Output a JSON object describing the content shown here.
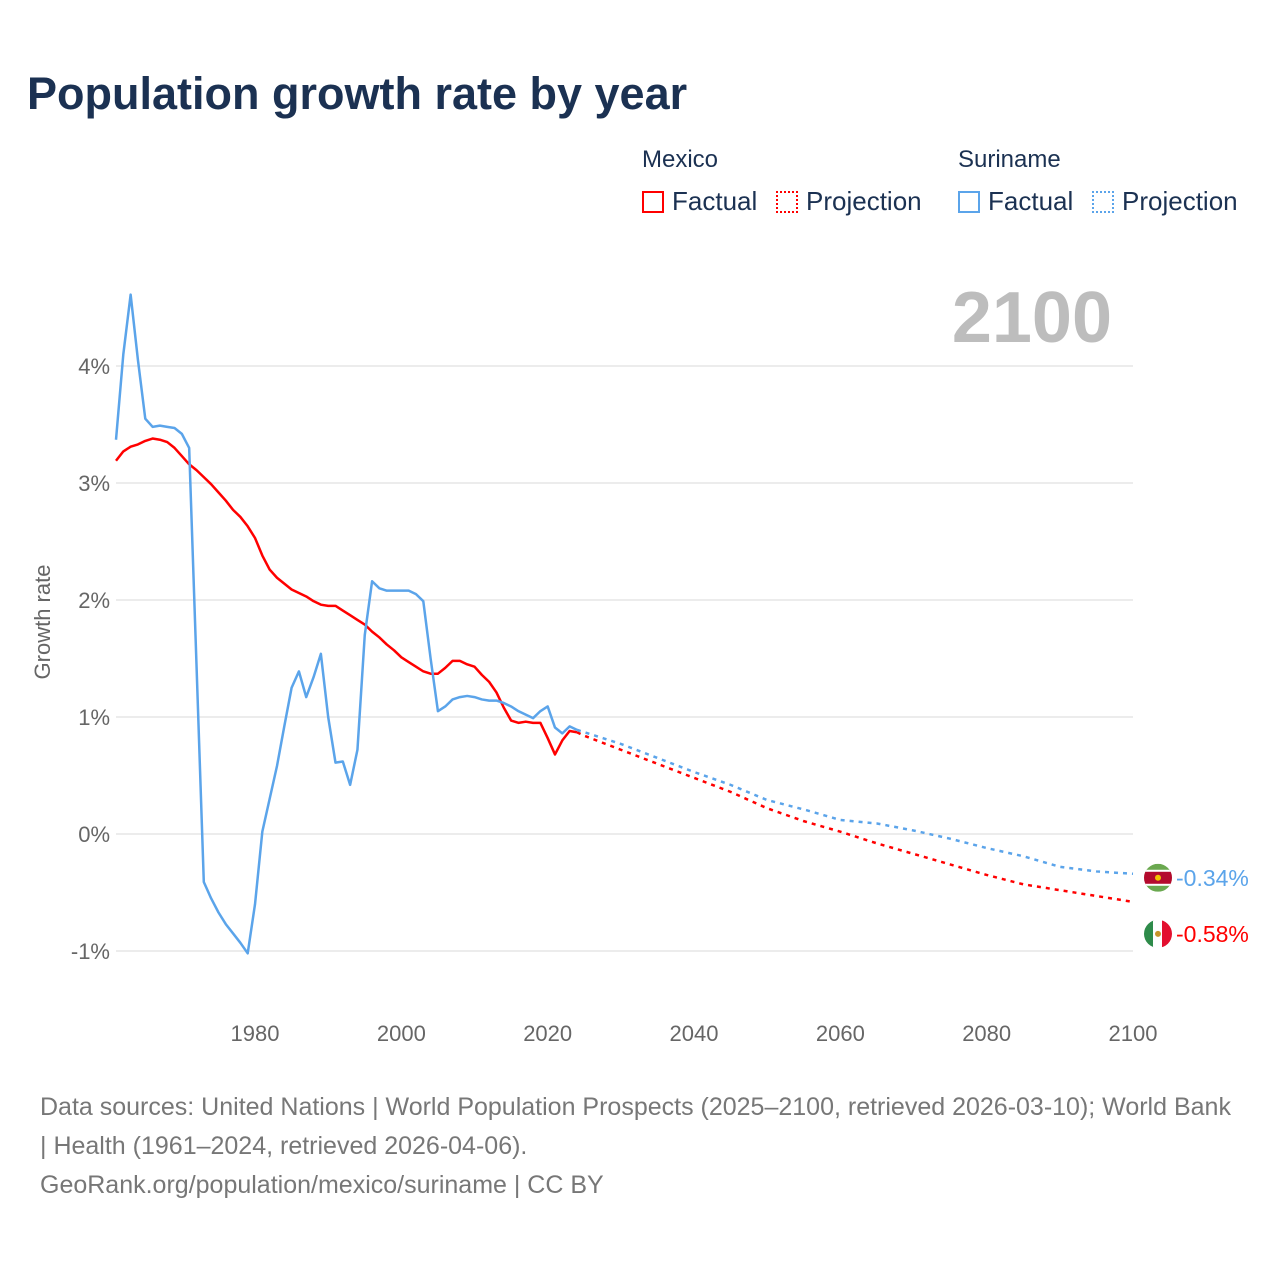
{
  "title": "Population growth rate by year",
  "legend": {
    "groups": [
      {
        "country": "Mexico",
        "color": "#ff0000",
        "factual": "Factual",
        "projection": "Projection"
      },
      {
        "country": "Suriname",
        "color": "#5ba4ea",
        "factual": "Factual",
        "projection": "Projection"
      }
    ]
  },
  "year_label": "2100",
  "footer": {
    "line1": "Data sources: United Nations | World Population Prospects (2025–2100, retrieved 2026-03-10); World Bank | Health (1961–2024, retrieved 2026-04-06).",
    "line2": "GeoRank.org/population/mexico/suriname | CC BY"
  },
  "chart_data": {
    "type": "line",
    "title": "Population growth rate by year",
    "xlabel": "",
    "ylabel": "Growth rate",
    "xlim": [
      1961,
      2100
    ],
    "ylim": [
      -1.5,
      4.8
    ],
    "grid": true,
    "x_ticks": [
      1980,
      2000,
      2020,
      2040,
      2060,
      2080,
      2100
    ],
    "x_tick_labels": [
      "1980",
      "2000",
      "2020",
      "2040",
      "2060",
      "2080",
      "2100"
    ],
    "y_ticks": [
      -1,
      0,
      1,
      2,
      3,
      4
    ],
    "y_tick_labels": [
      "-1%",
      "0%",
      "1%",
      "2%",
      "3%",
      "4%"
    ],
    "series": [
      {
        "name": "Mexico",
        "color": "#ff0000",
        "end_label": "-0.58%",
        "factual": {
          "start_year": 1961,
          "values": [
            3.19,
            3.27,
            3.31,
            3.33,
            3.36,
            3.38,
            3.37,
            3.35,
            3.3,
            3.23,
            3.16,
            3.11,
            3.05,
            2.99,
            2.92,
            2.85,
            2.77,
            2.71,
            2.63,
            2.53,
            2.38,
            2.26,
            2.19,
            2.14,
            2.09,
            2.06,
            2.03,
            1.99,
            1.96,
            1.95,
            1.95,
            1.91,
            1.87,
            1.83,
            1.79,
            1.73,
            1.68,
            1.62,
            1.57,
            1.51,
            1.47,
            1.43,
            1.39,
            1.37,
            1.37,
            1.42,
            1.48,
            1.48,
            1.45,
            1.43,
            1.36,
            1.3,
            1.21,
            1.08,
            0.97,
            0.95,
            0.96,
            0.95,
            0.95,
            0.82,
            0.68,
            0.8,
            0.88,
            0.87
          ]
        },
        "projection": {
          "years": [
            2024,
            2025,
            2030,
            2035,
            2040,
            2045,
            2050,
            2055,
            2060,
            2065,
            2070,
            2075,
            2080,
            2085,
            2090,
            2095,
            2100
          ],
          "values": [
            0.87,
            0.84,
            0.72,
            0.6,
            0.48,
            0.36,
            0.22,
            0.11,
            0.02,
            -0.08,
            -0.17,
            -0.26,
            -0.35,
            -0.43,
            -0.48,
            -0.53,
            -0.58
          ]
        }
      },
      {
        "name": "Suriname",
        "color": "#5ba4ea",
        "end_label": "-0.34%",
        "factual": {
          "start_year": 1961,
          "values": [
            3.37,
            4.1,
            4.61,
            4.05,
            3.55,
            3.48,
            3.49,
            3.48,
            3.47,
            3.42,
            3.3,
            1.45,
            -0.41,
            -0.55,
            -0.67,
            -0.77,
            -0.85,
            -0.93,
            -1.02,
            -0.6,
            0.02,
            0.3,
            0.58,
            0.92,
            1.25,
            1.39,
            1.17,
            1.34,
            1.54,
            1.0,
            0.61,
            0.62,
            0.42,
            0.72,
            1.7,
            2.16,
            2.1,
            2.08,
            2.08,
            2.08,
            2.08,
            2.05,
            1.99,
            1.5,
            1.05,
            1.09,
            1.15,
            1.17,
            1.18,
            1.17,
            1.15,
            1.14,
            1.14,
            1.12,
            1.09,
            1.05,
            1.02,
            0.99,
            1.05,
            1.09,
            0.91,
            0.86,
            0.92,
            0.89
          ]
        },
        "projection": {
          "years": [
            2024,
            2025,
            2030,
            2035,
            2040,
            2045,
            2050,
            2055,
            2060,
            2065,
            2070,
            2075,
            2080,
            2085,
            2090,
            2095,
            2100
          ],
          "values": [
            0.89,
            0.87,
            0.77,
            0.65,
            0.53,
            0.42,
            0.29,
            0.21,
            0.12,
            0.09,
            0.03,
            -0.04,
            -0.12,
            -0.19,
            -0.28,
            -0.32,
            -0.34
          ]
        }
      }
    ]
  }
}
